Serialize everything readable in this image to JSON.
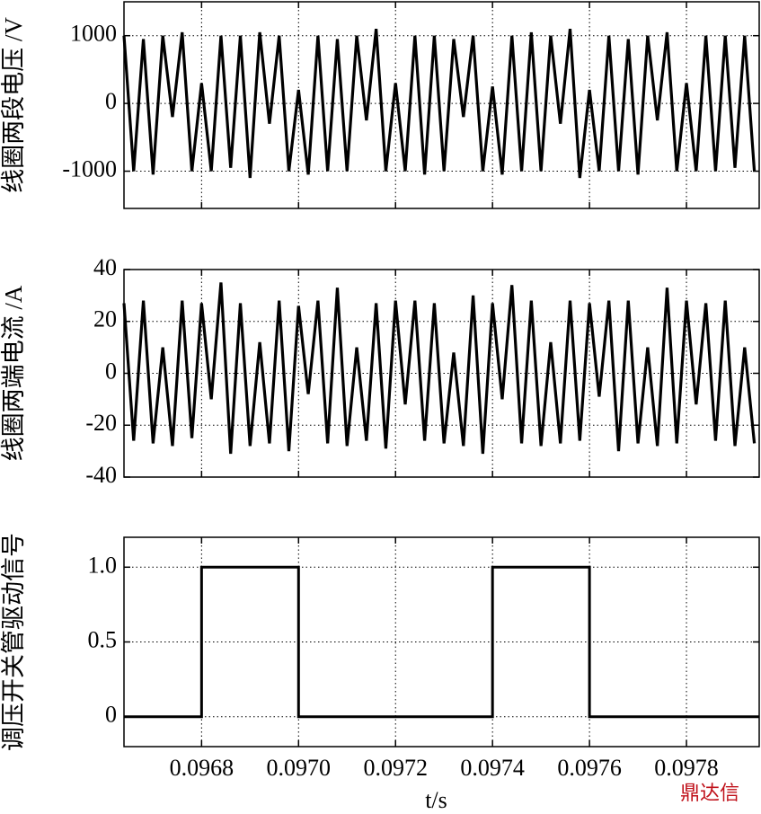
{
  "chart_data": [
    {
      "type": "line",
      "ylabel": "线圈两段电压 /V",
      "color": "#000000",
      "grid": true,
      "x": [
        0.09664,
        0.09666,
        0.09668,
        0.0967,
        0.09672,
        0.09674,
        0.09676,
        0.09678,
        0.0968,
        0.09682,
        0.09684,
        0.09686,
        0.09688,
        0.0969,
        0.09692,
        0.09694,
        0.09696,
        0.09698,
        0.097,
        0.09702,
        0.09704,
        0.09706,
        0.09708,
        0.0971,
        0.09712,
        0.09714,
        0.09716,
        0.09718,
        0.0972,
        0.09722,
        0.09724,
        0.09726,
        0.09728,
        0.0973,
        0.09732,
        0.09734,
        0.09736,
        0.09738,
        0.0974,
        0.09742,
        0.09744,
        0.09746,
        0.09748,
        0.0975,
        0.09752,
        0.09754,
        0.09756,
        0.09758,
        0.0976,
        0.09762,
        0.09764,
        0.09766,
        0.09768,
        0.0977,
        0.09772,
        0.09774,
        0.09776,
        0.09778,
        0.0978,
        0.09782,
        0.09784,
        0.09786,
        0.09788,
        0.0979,
        0.09792,
        0.09794
      ],
      "values": [
        1000,
        -1000,
        950,
        -1050,
        1000,
        -200,
        1050,
        -1000,
        300,
        -1000,
        1000,
        -950,
        1000,
        -1100,
        1050,
        -300,
        1000,
        -1000,
        200,
        -1050,
        1000,
        -1000,
        950,
        -1000,
        1000,
        -250,
        1100,
        -1000,
        300,
        -1000,
        1000,
        -1050,
        1000,
        -1000,
        950,
        -200,
        1000,
        -1000,
        250,
        -1050,
        1000,
        -1000,
        1050,
        -1000,
        1000,
        -300,
        1100,
        -1100,
        200,
        -1000,
        1000,
        -1000,
        950,
        -1050,
        1000,
        -250,
        1050,
        -1000,
        300,
        -1000,
        1000,
        -1000,
        1000,
        -950,
        1000,
        -1000
      ],
      "xlim": [
        0.09664,
        0.09795
      ],
      "xticks": [
        0.0968,
        0.097,
        0.0972,
        0.0974,
        0.0976,
        0.0978
      ],
      "ylim": [
        -1550,
        1500
      ],
      "yticks": [
        -1000,
        0,
        1000
      ]
    },
    {
      "type": "line",
      "ylabel": "线圈两端电流 /A",
      "color": "#000000",
      "grid": true,
      "x": [
        0.09664,
        0.09666,
        0.09668,
        0.0967,
        0.09672,
        0.09674,
        0.09676,
        0.09678,
        0.0968,
        0.09682,
        0.09684,
        0.09686,
        0.09688,
        0.0969,
        0.09692,
        0.09694,
        0.09696,
        0.09698,
        0.097,
        0.09702,
        0.09704,
        0.09706,
        0.09708,
        0.0971,
        0.09712,
        0.09714,
        0.09716,
        0.09718,
        0.0972,
        0.09722,
        0.09724,
        0.09726,
        0.09728,
        0.0973,
        0.09732,
        0.09734,
        0.09736,
        0.09738,
        0.0974,
        0.09742,
        0.09744,
        0.09746,
        0.09748,
        0.0975,
        0.09752,
        0.09754,
        0.09756,
        0.09758,
        0.0976,
        0.09762,
        0.09764,
        0.09766,
        0.09768,
        0.0977,
        0.09772,
        0.09774,
        0.09776,
        0.09778,
        0.0978,
        0.09782,
        0.09784,
        0.09786,
        0.09788,
        0.0979,
        0.09792,
        0.09794
      ],
      "values": [
        27,
        -26,
        28,
        -27,
        10,
        -28,
        28,
        -25,
        27,
        -10,
        35,
        -31,
        27,
        -28,
        12,
        -27,
        28,
        -30,
        26,
        -8,
        28,
        -27,
        33,
        -28,
        10,
        -26,
        27,
        -29,
        28,
        -12,
        28,
        -26,
        27,
        -27,
        8,
        -28,
        30,
        -31,
        27,
        -10,
        34,
        -27,
        28,
        -28,
        12,
        -27,
        28,
        -26,
        27,
        -9,
        28,
        -30,
        28,
        -27,
        10,
        -28,
        33,
        -27,
        28,
        -12,
        27,
        -26,
        28,
        -28,
        10,
        -27
      ],
      "xlim": [
        0.09664,
        0.09795
      ],
      "xticks": [
        0.0968,
        0.097,
        0.0972,
        0.0974,
        0.0976,
        0.0978
      ],
      "ylim": [
        -40,
        40
      ],
      "yticks": [
        -40,
        -20,
        0,
        20,
        40
      ]
    },
    {
      "type": "line",
      "ylabel": "调压开关管驱动信号",
      "xlabel": "t/s",
      "color": "#000000",
      "grid": true,
      "x": [
        0.09664,
        0.0968,
        0.0968,
        0.097,
        0.097,
        0.0974,
        0.0974,
        0.0976,
        0.0976,
        0.09795
      ],
      "values": [
        0,
        0,
        1,
        1,
        0,
        0,
        1,
        1,
        0,
        0
      ],
      "xlim": [
        0.09664,
        0.09795
      ],
      "xticks": [
        0.0968,
        {
          "value": 0.097,
          "label": "0.0970"
        },
        0.0972,
        0.0974,
        0.0976,
        0.0978
      ],
      "ylim": [
        -0.2,
        1.2
      ],
      "yticks": [
        0,
        0.5,
        {
          "value": 1,
          "label": "1.0"
        }
      ]
    }
  ],
  "watermark": "鼎达信"
}
